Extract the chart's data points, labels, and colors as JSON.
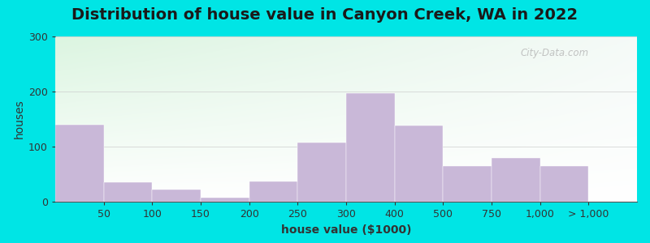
{
  "title": "Distribution of house value in Canyon Creek, WA in 2022",
  "xlabel": "house value ($1000)",
  "ylabel": "houses",
  "bar_color": "#c9b8d8",
  "background_outer": "#00e5e5",
  "ylim": [
    0,
    300
  ],
  "yticks": [
    0,
    100,
    200,
    300
  ],
  "tick_labels": [
    "50",
    "100",
    "150",
    "200",
    "250",
    "300",
    "400",
    "500",
    "750",
    "1,000",
    "> 1,000"
  ],
  "bar_heights": [
    140,
    35,
    22,
    8,
    37,
    107,
    197,
    138,
    65,
    80,
    65
  ],
  "title_fontsize": 14,
  "axis_fontsize": 10,
  "tick_fontsize": 9,
  "watermark_text": "City-Data.com"
}
